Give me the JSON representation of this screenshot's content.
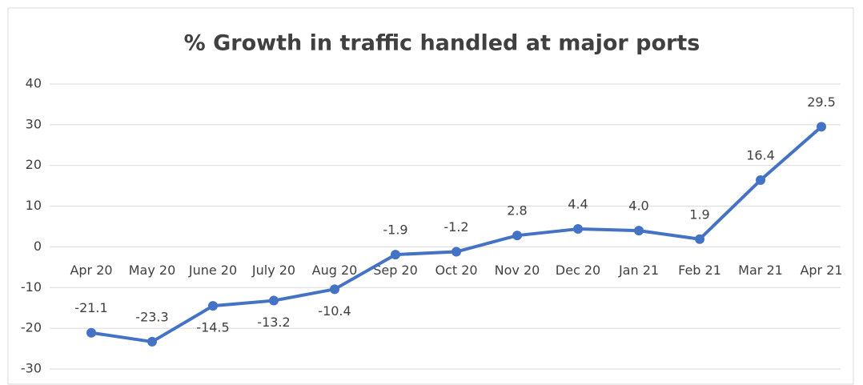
{
  "chart_data": {
    "type": "line",
    "title": "% Growth in traffic handled at major ports",
    "categories": [
      "Apr 20",
      "May 20",
      "June 20",
      "July 20",
      "Aug 20",
      "Sep 20",
      "Oct 20",
      "Nov 20",
      "Dec 20",
      "Jan 21",
      "Feb 21",
      "Mar 21",
      "Apr 21"
    ],
    "series": [
      {
        "name": "% Growth",
        "color": "#4472c4",
        "values": [
          -21.1,
          -23.3,
          -14.5,
          -13.2,
          -10.4,
          -1.9,
          -1.2,
          2.8,
          4.4,
          4.0,
          1.9,
          16.4,
          29.5
        ],
        "value_labels": [
          "-21.1",
          "-23.3",
          "-14.5",
          "-13.2",
          "-10.4",
          "-1.9",
          "-1.2",
          "2.8",
          "4.4",
          "4.0",
          "1.9",
          "16.4",
          "29.5"
        ]
      }
    ],
    "ylim": [
      -30,
      40
    ],
    "yticks": [
      -30,
      -20,
      -10,
      0,
      10,
      20,
      30,
      40
    ],
    "grid": true
  }
}
